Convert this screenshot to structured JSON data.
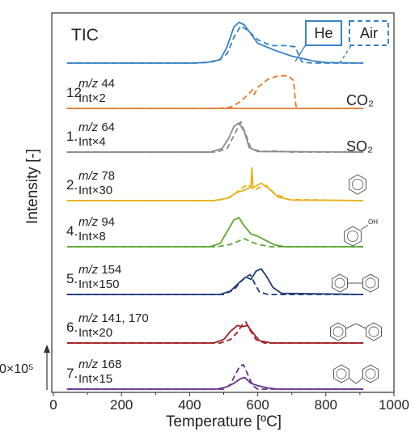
{
  "chart_data": {
    "type": "line",
    "xlabel": "Temperature [ºC]",
    "ylabel": "Intensity [-]",
    "xlim": [
      0,
      1000
    ],
    "xticks": [
      "0",
      "200",
      "400",
      "600",
      "800",
      "1000"
    ],
    "scale_bar_label": "0×10⁵",
    "legend": {
      "solid": "He",
      "dashed": "Air",
      "placement": "top-right"
    },
    "colors": {
      "tic": "#3a82c4",
      "co2": "#e07b2e",
      "so2": "#8a8a8a",
      "benzene": "#e8b21a",
      "phenol": "#5aa832",
      "biphenyl": "#1f3a7a",
      "diphenylether": "#9e1f23",
      "dibenzofuran": "#6a2f8a"
    },
    "panels": [
      {
        "key": "tic",
        "number": "",
        "mz": "",
        "label": "TIC",
        "int": "",
        "compound": "",
        "solid": [
          [
            40,
            0
          ],
          [
            400,
            0
          ],
          [
            450,
            1
          ],
          [
            490,
            6
          ],
          [
            510,
            28
          ],
          [
            530,
            62
          ],
          [
            545,
            70
          ],
          [
            560,
            66
          ],
          [
            580,
            50
          ],
          [
            600,
            34
          ],
          [
            650,
            22
          ],
          [
            700,
            12
          ],
          [
            760,
            4
          ],
          [
            800,
            1
          ],
          [
            910,
            0
          ]
        ],
        "dashed": [
          [
            40,
            0
          ],
          [
            420,
            0
          ],
          [
            480,
            3
          ],
          [
            510,
            16
          ],
          [
            530,
            44
          ],
          [
            550,
            64
          ],
          [
            575,
            54
          ],
          [
            600,
            40
          ],
          [
            640,
            30
          ],
          [
            680,
            30
          ],
          [
            710,
            28
          ],
          [
            730,
            2
          ],
          [
            760,
            0
          ],
          [
            910,
            0
          ]
        ]
      },
      {
        "key": "co2",
        "number": "12",
        "mz": "44",
        "label": "",
        "int": "Int×2",
        "compound": "CO₂",
        "solid": [
          [
            40,
            0
          ],
          [
            910,
            0
          ]
        ],
        "dashed": [
          [
            40,
            0
          ],
          [
            480,
            0
          ],
          [
            520,
            2
          ],
          [
            550,
            12
          ],
          [
            575,
            26
          ],
          [
            585,
            32
          ],
          [
            590,
            24
          ],
          [
            600,
            36
          ],
          [
            630,
            50
          ],
          [
            660,
            56
          ],
          [
            690,
            56
          ],
          [
            705,
            48
          ],
          [
            712,
            4
          ],
          [
            720,
            0
          ],
          [
            910,
            0
          ]
        ]
      },
      {
        "key": "so2",
        "number": "1.",
        "mz": "64",
        "label": "",
        "int": "Int×4",
        "compound": "SO₂",
        "solid": [
          [
            40,
            0
          ],
          [
            460,
            0
          ],
          [
            495,
            6
          ],
          [
            515,
            24
          ],
          [
            530,
            44
          ],
          [
            545,
            50
          ],
          [
            560,
            36
          ],
          [
            575,
            8
          ],
          [
            600,
            1
          ],
          [
            910,
            0
          ]
        ],
        "dashed": [
          [
            40,
            0
          ],
          [
            480,
            0
          ],
          [
            510,
            6
          ],
          [
            530,
            28
          ],
          [
            550,
            52
          ],
          [
            565,
            30
          ],
          [
            580,
            6
          ],
          [
            610,
            1
          ],
          [
            650,
            2
          ],
          [
            700,
            0
          ],
          [
            910,
            0
          ]
        ]
      },
      {
        "key": "benzene",
        "number": "2.",
        "mz": "78",
        "label": "",
        "int": "Int×30",
        "compound": "benzene",
        "solid": [
          [
            40,
            0
          ],
          [
            470,
            0
          ],
          [
            510,
            4
          ],
          [
            540,
            14
          ],
          [
            570,
            20
          ],
          [
            580,
            24
          ],
          [
            583,
            56
          ],
          [
            586,
            22
          ],
          [
            610,
            30
          ],
          [
            630,
            22
          ],
          [
            660,
            6
          ],
          [
            700,
            1
          ],
          [
            910,
            0
          ]
        ],
        "dashed": [
          [
            40,
            0
          ],
          [
            480,
            0
          ],
          [
            520,
            6
          ],
          [
            550,
            20
          ],
          [
            570,
            28
          ],
          [
            590,
            18
          ],
          [
            610,
            24
          ],
          [
            625,
            26
          ],
          [
            650,
            12
          ],
          [
            690,
            2
          ],
          [
            910,
            0
          ]
        ]
      },
      {
        "key": "phenol",
        "number": "4.",
        "mz": "94",
        "label": "",
        "int": "Int×8",
        "compound": "phenol",
        "solid": [
          [
            40,
            0
          ],
          [
            460,
            0
          ],
          [
            490,
            6
          ],
          [
            510,
            26
          ],
          [
            530,
            46
          ],
          [
            545,
            50
          ],
          [
            560,
            36
          ],
          [
            580,
            22
          ],
          [
            600,
            18
          ],
          [
            620,
            12
          ],
          [
            650,
            3
          ],
          [
            680,
            0
          ],
          [
            910,
            0
          ]
        ],
        "dashed": [
          [
            40,
            0
          ],
          [
            480,
            0
          ],
          [
            520,
            4
          ],
          [
            545,
            10
          ],
          [
            560,
            14
          ],
          [
            575,
            10
          ],
          [
            600,
            4
          ],
          [
            640,
            0
          ],
          [
            910,
            0
          ]
        ]
      },
      {
        "key": "biphenyl",
        "number": "5.",
        "mz": "154",
        "label": "",
        "int": "Int×150",
        "compound": "biphenyl",
        "solid": [
          [
            40,
            0
          ],
          [
            490,
            0
          ],
          [
            520,
            6
          ],
          [
            545,
            20
          ],
          [
            565,
            30
          ],
          [
            580,
            26
          ],
          [
            595,
            40
          ],
          [
            610,
            44
          ],
          [
            625,
            32
          ],
          [
            645,
            12
          ],
          [
            670,
            2
          ],
          [
            910,
            0
          ]
        ],
        "dashed": [
          [
            40,
            0
          ],
          [
            500,
            0
          ],
          [
            530,
            8
          ],
          [
            550,
            22
          ],
          [
            565,
            30
          ],
          [
            578,
            34
          ],
          [
            590,
            20
          ],
          [
            605,
            4
          ],
          [
            630,
            0
          ],
          [
            910,
            0
          ]
        ]
      },
      {
        "key": "diphenylether",
        "number": "6.",
        "mz": "141, 170",
        "label": "",
        "int": "Int×20",
        "compound": "diphenyl-ether",
        "solid": [
          [
            40,
            0
          ],
          [
            470,
            0
          ],
          [
            500,
            6
          ],
          [
            520,
            20
          ],
          [
            540,
            30
          ],
          [
            555,
            28
          ],
          [
            570,
            30
          ],
          [
            585,
            18
          ],
          [
            605,
            4
          ],
          [
            640,
            0
          ],
          [
            910,
            0
          ]
        ],
        "dashed": [
          [
            40,
            0
          ],
          [
            490,
            0
          ],
          [
            520,
            6
          ],
          [
            540,
            18
          ],
          [
            555,
            32
          ],
          [
            565,
            36
          ],
          [
            578,
            22
          ],
          [
            595,
            6
          ],
          [
            620,
            0
          ],
          [
            910,
            0
          ]
        ]
      },
      {
        "key": "dibenzofuran",
        "number": "7.",
        "mz": "168",
        "label": "",
        "int": "Int×15",
        "compound": "dibenzofuran",
        "solid": [
          [
            40,
            0
          ],
          [
            480,
            0
          ],
          [
            510,
            4
          ],
          [
            530,
            10
          ],
          [
            550,
            18
          ],
          [
            562,
            20
          ],
          [
            580,
            10
          ],
          [
            600,
            6
          ],
          [
            630,
            2
          ],
          [
            660,
            0
          ],
          [
            910,
            0
          ]
        ],
        "dashed": [
          [
            40,
            0
          ],
          [
            500,
            0
          ],
          [
            520,
            8
          ],
          [
            535,
            26
          ],
          [
            548,
            40
          ],
          [
            558,
            42
          ],
          [
            570,
            26
          ],
          [
            585,
            6
          ],
          [
            600,
            0
          ],
          [
            910,
            0
          ]
        ]
      }
    ]
  }
}
